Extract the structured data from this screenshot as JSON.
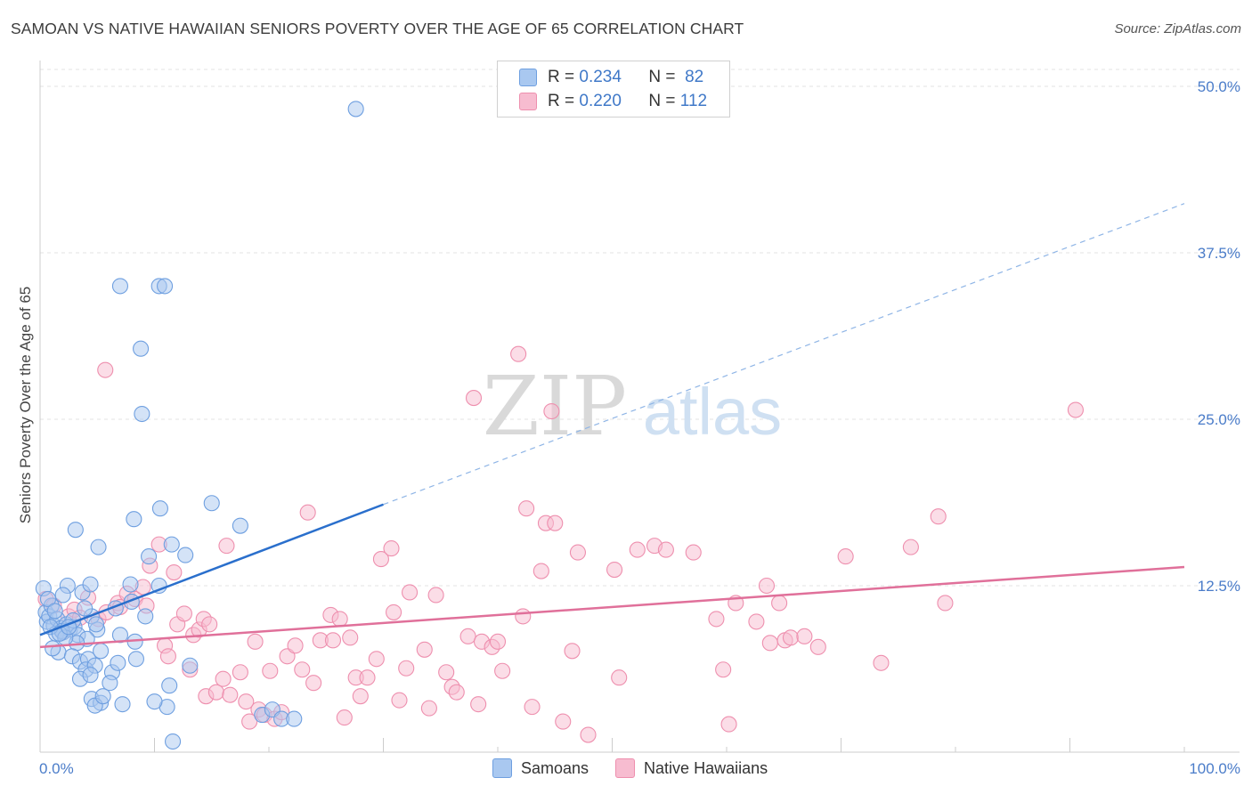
{
  "title": "SAMOAN VS NATIVE HAWAIIAN SENIORS POVERTY OVER THE AGE OF 65 CORRELATION CHART",
  "source": "Source: ZipAtlas.com",
  "watermark": {
    "part1": "ZIP",
    "part2": "atlas"
  },
  "colors": {
    "samoans_fill": "#a9c8f0",
    "samoans_stroke": "#6e9fe0",
    "samoans_line": "#2a6fcc",
    "hawaiians_fill": "#f7bcd0",
    "hawaiians_stroke": "#ee8fae",
    "hawaiians_line": "#e0709a",
    "tick_label": "#4a7cc9"
  },
  "legend": {
    "rows": [
      {
        "r_label": "R =",
        "r_value": "0.234",
        "n_label": "N =",
        "n_value": "82"
      },
      {
        "r_label": "R =",
        "r_value": "0.220",
        "n_label": "N =",
        "n_value": "112"
      }
    ]
  },
  "bottom_legend": {
    "samoans": "Samoans",
    "hawaiians": "Native Hawaiians"
  },
  "chart_data": {
    "type": "scatter",
    "title": "SAMOAN VS NATIVE HAWAIIAN SENIORS POVERTY OVER THE AGE OF 65 CORRELATION CHART",
    "ylabel": "Seniors Poverty Over the Age of 65",
    "xlabel": "",
    "xlim": [
      0,
      100
    ],
    "ylim": [
      0,
      50
    ],
    "x_tick_labels": [
      {
        "value": 0,
        "label": "0.0%"
      },
      {
        "value": 100,
        "label": "100.0%"
      }
    ],
    "y_tick_labels": [
      {
        "value": 12.5,
        "label": "12.5%"
      },
      {
        "value": 25,
        "label": "25.0%"
      },
      {
        "value": 37.5,
        "label": "37.5%"
      },
      {
        "value": 50,
        "label": "50.0%"
      }
    ],
    "series": [
      {
        "name": "Samoans",
        "r": 0.234,
        "n": 82,
        "trend": {
          "x0": 0,
          "y0": 8.8,
          "x1": 30,
          "y1": 18.6,
          "dashed_to_x": 100,
          "dashed_to_y": 41.2
        },
        "points": [
          [
            0.3,
            12.3
          ],
          [
            0.5,
            10.5
          ],
          [
            0.6,
            9.8
          ],
          [
            0.8,
            10.2
          ],
          [
            1.0,
            11.0
          ],
          [
            1.2,
            9.5
          ],
          [
            1.5,
            10.0
          ],
          [
            1.8,
            9.3
          ],
          [
            2.0,
            9.0
          ],
          [
            2.3,
            9.6
          ],
          [
            1.4,
            8.9
          ],
          [
            2.6,
            9.2
          ],
          [
            3.0,
            9.4
          ],
          [
            3.3,
            8.8
          ],
          [
            1.6,
            7.5
          ],
          [
            2.4,
            12.5
          ],
          [
            3.7,
            12.0
          ],
          [
            4.4,
            12.6
          ],
          [
            4.5,
            10.2
          ],
          [
            5.0,
            9.2
          ],
          [
            4.1,
            8.5
          ],
          [
            3.2,
            8.2
          ],
          [
            2.8,
            7.2
          ],
          [
            3.5,
            6.8
          ],
          [
            4.2,
            7.0
          ],
          [
            4.0,
            6.2
          ],
          [
            4.8,
            6.5
          ],
          [
            5.3,
            7.6
          ],
          [
            3.5,
            5.5
          ],
          [
            4.4,
            5.8
          ],
          [
            6.3,
            6.0
          ],
          [
            6.1,
            5.2
          ],
          [
            7.0,
            8.8
          ],
          [
            6.6,
            10.8
          ],
          [
            7.9,
            12.6
          ],
          [
            9.2,
            10.2
          ],
          [
            8.0,
            11.3
          ],
          [
            8.3,
            8.3
          ],
          [
            8.4,
            7.0
          ],
          [
            9.5,
            14.7
          ],
          [
            10.5,
            18.3
          ],
          [
            10.4,
            12.5
          ],
          [
            11.5,
            15.6
          ],
          [
            12.7,
            14.8
          ],
          [
            13.1,
            6.5
          ],
          [
            11.3,
            5.0
          ],
          [
            11.1,
            3.4
          ],
          [
            11.6,
            0.8
          ],
          [
            4.5,
            4.0
          ],
          [
            5.3,
            3.7
          ],
          [
            4.8,
            3.5
          ],
          [
            7.2,
            3.6
          ],
          [
            10.0,
            3.8
          ],
          [
            3.1,
            16.7
          ],
          [
            5.1,
            15.4
          ],
          [
            8.2,
            17.5
          ],
          [
            17.5,
            17.0
          ],
          [
            15.0,
            18.7
          ],
          [
            8.8,
            30.3
          ],
          [
            7.0,
            35.0
          ],
          [
            10.4,
            35.0
          ],
          [
            10.9,
            35.0
          ],
          [
            8.9,
            25.4
          ],
          [
            27.6,
            48.3
          ],
          [
            19.4,
            2.8
          ],
          [
            20.3,
            3.2
          ],
          [
            21.1,
            2.5
          ],
          [
            22.2,
            2.5
          ],
          [
            1.1,
            7.8
          ],
          [
            1.9,
            9.1
          ],
          [
            2.2,
            8.6
          ],
          [
            2.9,
            9.9
          ],
          [
            0.7,
            11.5
          ],
          [
            1.3,
            10.6
          ],
          [
            4.9,
            9.6
          ],
          [
            2.0,
            11.8
          ],
          [
            3.9,
            10.8
          ],
          [
            6.8,
            6.7
          ],
          [
            5.5,
            4.2
          ],
          [
            0.9,
            9.4
          ],
          [
            1.7,
            8.9
          ],
          [
            2.5,
            9.4
          ]
        ]
      },
      {
        "name": "Native Hawaiians",
        "r": 0.22,
        "n": 112,
        "trend": {
          "x0": 0,
          "y0": 7.9,
          "x1": 100,
          "y1": 13.9
        },
        "points": [
          [
            0.5,
            11.5
          ],
          [
            1.2,
            11.0
          ],
          [
            2.0,
            9.0
          ],
          [
            2.5,
            10.2
          ],
          [
            3.0,
            10.7
          ],
          [
            3.5,
            10.1
          ],
          [
            4.2,
            11.6
          ],
          [
            5.1,
            10.0
          ],
          [
            5.8,
            10.5
          ],
          [
            6.8,
            11.2
          ],
          [
            7.0,
            10.9
          ],
          [
            7.6,
            11.9
          ],
          [
            8.3,
            11.5
          ],
          [
            9.0,
            12.4
          ],
          [
            9.3,
            11.0
          ],
          [
            9.6,
            14.0
          ],
          [
            10.4,
            15.6
          ],
          [
            10.9,
            8.0
          ],
          [
            11.2,
            7.2
          ],
          [
            11.7,
            13.5
          ],
          [
            12.0,
            9.6
          ],
          [
            12.6,
            10.4
          ],
          [
            13.1,
            6.2
          ],
          [
            13.4,
            8.8
          ],
          [
            13.9,
            9.2
          ],
          [
            14.3,
            10.0
          ],
          [
            14.5,
            4.2
          ],
          [
            14.8,
            9.6
          ],
          [
            15.4,
            4.5
          ],
          [
            16.0,
            5.5
          ],
          [
            16.3,
            15.5
          ],
          [
            16.6,
            4.3
          ],
          [
            17.5,
            6.0
          ],
          [
            18.0,
            3.8
          ],
          [
            18.3,
            2.3
          ],
          [
            18.8,
            8.3
          ],
          [
            19.1,
            3.2
          ],
          [
            19.6,
            2.8
          ],
          [
            20.1,
            6.1
          ],
          [
            20.5,
            2.5
          ],
          [
            21.1,
            3.0
          ],
          [
            21.6,
            7.2
          ],
          [
            22.3,
            8.0
          ],
          [
            22.9,
            6.2
          ],
          [
            23.4,
            18.0
          ],
          [
            23.9,
            5.2
          ],
          [
            24.5,
            8.4
          ],
          [
            25.4,
            10.3
          ],
          [
            25.6,
            8.4
          ],
          [
            26.2,
            10.0
          ],
          [
            26.6,
            2.6
          ],
          [
            27.1,
            8.6
          ],
          [
            27.6,
            5.6
          ],
          [
            28.0,
            4.2
          ],
          [
            28.6,
            5.6
          ],
          [
            29.4,
            7.0
          ],
          [
            29.8,
            14.5
          ],
          [
            30.7,
            15.3
          ],
          [
            30.9,
            10.5
          ],
          [
            31.4,
            3.9
          ],
          [
            32.0,
            6.3
          ],
          [
            32.3,
            12.0
          ],
          [
            33.6,
            7.7
          ],
          [
            34.0,
            3.3
          ],
          [
            34.6,
            11.8
          ],
          [
            35.5,
            6.0
          ],
          [
            36.0,
            4.9
          ],
          [
            36.4,
            4.5
          ],
          [
            37.4,
            8.7
          ],
          [
            38.3,
            3.6
          ],
          [
            38.6,
            8.3
          ],
          [
            39.5,
            7.9
          ],
          [
            40.0,
            8.3
          ],
          [
            40.4,
            6.1
          ],
          [
            42.2,
            10.2
          ],
          [
            42.5,
            18.3
          ],
          [
            43.0,
            3.4
          ],
          [
            43.8,
            13.6
          ],
          [
            44.2,
            17.2
          ],
          [
            44.7,
            25.6
          ],
          [
            45.0,
            17.2
          ],
          [
            45.7,
            2.3
          ],
          [
            46.5,
            7.6
          ],
          [
            47.0,
            15.0
          ],
          [
            47.9,
            1.3
          ],
          [
            50.2,
            13.7
          ],
          [
            50.6,
            5.6
          ],
          [
            52.2,
            15.2
          ],
          [
            53.7,
            15.5
          ],
          [
            54.7,
            15.2
          ],
          [
            57.1,
            15.0
          ],
          [
            59.1,
            10.0
          ],
          [
            59.7,
            6.2
          ],
          [
            60.2,
            2.1
          ],
          [
            60.8,
            11.2
          ],
          [
            62.6,
            9.8
          ],
          [
            63.5,
            12.5
          ],
          [
            63.8,
            8.2
          ],
          [
            64.6,
            11.2
          ],
          [
            65.1,
            8.4
          ],
          [
            65.6,
            8.6
          ],
          [
            66.8,
            8.7
          ],
          [
            68.0,
            7.9
          ],
          [
            70.4,
            14.7
          ],
          [
            73.5,
            6.7
          ],
          [
            76.1,
            15.4
          ],
          [
            78.5,
            17.7
          ],
          [
            79.1,
            11.2
          ],
          [
            90.5,
            25.7
          ],
          [
            5.7,
            28.7
          ],
          [
            41.8,
            29.9
          ],
          [
            37.9,
            26.6
          ]
        ]
      }
    ]
  }
}
